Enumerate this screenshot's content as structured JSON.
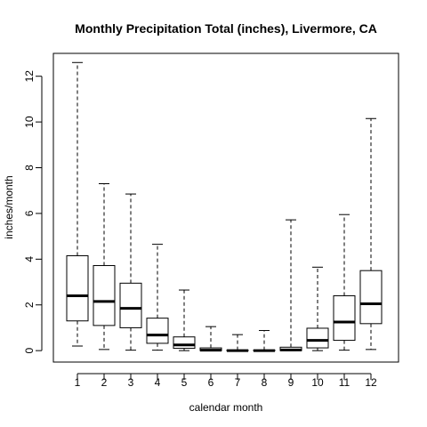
{
  "chart_data": {
    "type": "boxplot",
    "title": "Monthly Precipitation Total (inches), Livermore, CA",
    "xlabel": "calendar month",
    "ylabel": "inches/month",
    "ylim": [
      -0.5,
      13
    ],
    "yticks": [
      0,
      2,
      4,
      6,
      8,
      10,
      12
    ],
    "categories": [
      "1",
      "2",
      "3",
      "4",
      "5",
      "6",
      "7",
      "8",
      "9",
      "10",
      "11",
      "12"
    ],
    "boxes": [
      {
        "min": 0.2,
        "q1": 1.3,
        "median": 2.4,
        "q3": 4.15,
        "max": 12.6
      },
      {
        "min": 0.05,
        "q1": 1.1,
        "median": 2.15,
        "q3": 3.72,
        "max": 7.3
      },
      {
        "min": 0.02,
        "q1": 1.0,
        "median": 1.85,
        "q3": 2.95,
        "max": 6.85
      },
      {
        "min": 0.02,
        "q1": 0.32,
        "median": 0.68,
        "q3": 1.42,
        "max": 4.65
      },
      {
        "min": 0.0,
        "q1": 0.1,
        "median": 0.25,
        "q3": 0.6,
        "max": 2.65
      },
      {
        "min": 0.0,
        "q1": 0.0,
        "median": 0.02,
        "q3": 0.12,
        "max": 1.05
      },
      {
        "min": 0.0,
        "q1": 0.0,
        "median": 0.0,
        "q3": 0.02,
        "max": 0.7
      },
      {
        "min": 0.0,
        "q1": 0.0,
        "median": 0.0,
        "q3": 0.02,
        "max": 0.88
      },
      {
        "min": 0.0,
        "q1": 0.0,
        "median": 0.03,
        "q3": 0.15,
        "max": 5.72
      },
      {
        "min": 0.0,
        "q1": 0.12,
        "median": 0.45,
        "q3": 0.98,
        "max": 3.65
      },
      {
        "min": 0.02,
        "q1": 0.45,
        "median": 1.25,
        "q3": 2.4,
        "max": 5.95
      },
      {
        "min": 0.05,
        "q1": 1.18,
        "median": 2.05,
        "q3": 3.5,
        "max": 10.15
      }
    ],
    "grid": false,
    "legend": "none"
  }
}
